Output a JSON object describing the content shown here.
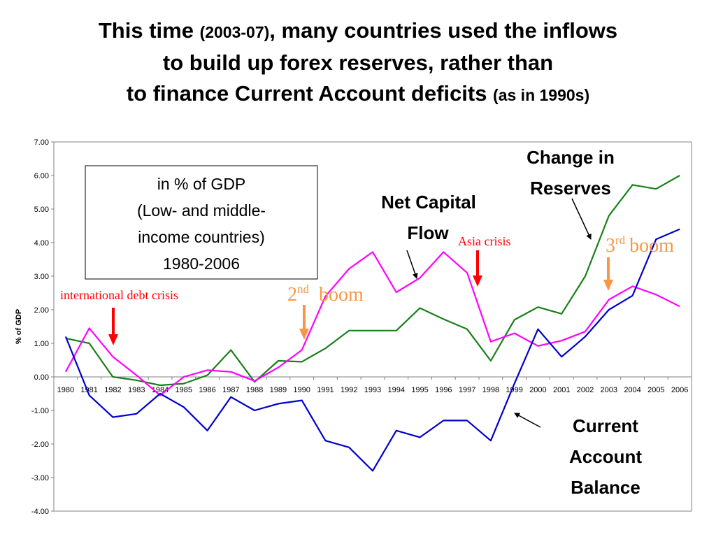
{
  "title": {
    "line1_a": "This time ",
    "line1_b": "(2003-07)",
    "line1_c": ", many countries used the inflows",
    "line2": "to build up forex reserves, rather than",
    "line3_a": "to finance Current Account deficits ",
    "line3_b": "(as in 1990s)"
  },
  "colors": {
    "reserves": "#1a7f1a",
    "capital": "#ff00ff",
    "current": "#0000cc",
    "red_arrow": "#ff0000",
    "boom_arrow": "#f79646"
  },
  "chart_data": {
    "type": "line",
    "ylabel": "% of GDP",
    "ylim": [
      -4,
      7
    ],
    "yticks": [
      "7.00",
      "6.00",
      "5.00",
      "4.00",
      "3.00",
      "2.00",
      "1.00",
      "0.00",
      "-1.00",
      "-2.00",
      "-3.00",
      "-4.00"
    ],
    "x": [
      "1980",
      "1981",
      "1982",
      "1983",
      "1984",
      "1985",
      "1986",
      "1987",
      "1988",
      "1989",
      "1990",
      "1991",
      "1992",
      "1993",
      "1994",
      "1995",
      "1996",
      "1997",
      "1998",
      "1999",
      "2000",
      "2001",
      "2002",
      "2003",
      "2004",
      "2005",
      "2006"
    ],
    "series": [
      {
        "name": "Change in Reserves",
        "color_key": "reserves",
        "values": [
          1.15,
          1.0,
          0.0,
          -0.1,
          -0.25,
          -0.2,
          0.05,
          0.8,
          -0.15,
          0.48,
          0.45,
          0.85,
          1.38,
          1.38,
          1.38,
          2.05,
          1.72,
          1.42,
          0.48,
          1.7,
          2.08,
          1.88,
          3.0,
          4.8,
          5.72,
          5.6,
          6.0
        ]
      },
      {
        "name": "Net Capital Flow",
        "color_key": "capital",
        "values": [
          0.15,
          1.45,
          0.6,
          0.05,
          -0.55,
          0.0,
          0.2,
          0.15,
          -0.12,
          0.28,
          0.8,
          2.4,
          3.22,
          3.72,
          2.52,
          2.95,
          3.72,
          3.1,
          1.05,
          1.3,
          0.92,
          1.08,
          1.35,
          2.3,
          2.7,
          2.45,
          2.1
        ]
      },
      {
        "name": "Current Account Balance",
        "color_key": "current",
        "values": [
          1.2,
          -0.55,
          -1.2,
          -1.1,
          -0.5,
          -0.9,
          -1.6,
          -0.6,
          -1.0,
          -0.8,
          -0.7,
          -1.9,
          -2.1,
          -2.8,
          -1.6,
          -1.8,
          -1.3,
          -1.3,
          -1.9,
          -0.2,
          1.42,
          0.6,
          1.2,
          2.0,
          2.42,
          4.1,
          4.4
        ]
      }
    ],
    "annotations": {
      "box_lines": [
        "in % of GDP",
        "(Low- and middle-",
        "income countries)",
        "1980-2006"
      ],
      "label_reserves_1": "Change in",
      "label_reserves_2": "Reserves",
      "label_capital_1": "Net Capital",
      "label_capital_2": "Flow",
      "label_current_1": "Current",
      "label_current_2": "Account",
      "label_current_3": "Balance",
      "debt_crisis": "international debt crisis",
      "asia_crisis": "Asia crisis",
      "boom2_num": "2",
      "boom2_sup": "nd",
      "boom2_word": "boom",
      "boom3_num": "3",
      "boom3_sup": "rd",
      "boom3_word": "boom"
    }
  }
}
